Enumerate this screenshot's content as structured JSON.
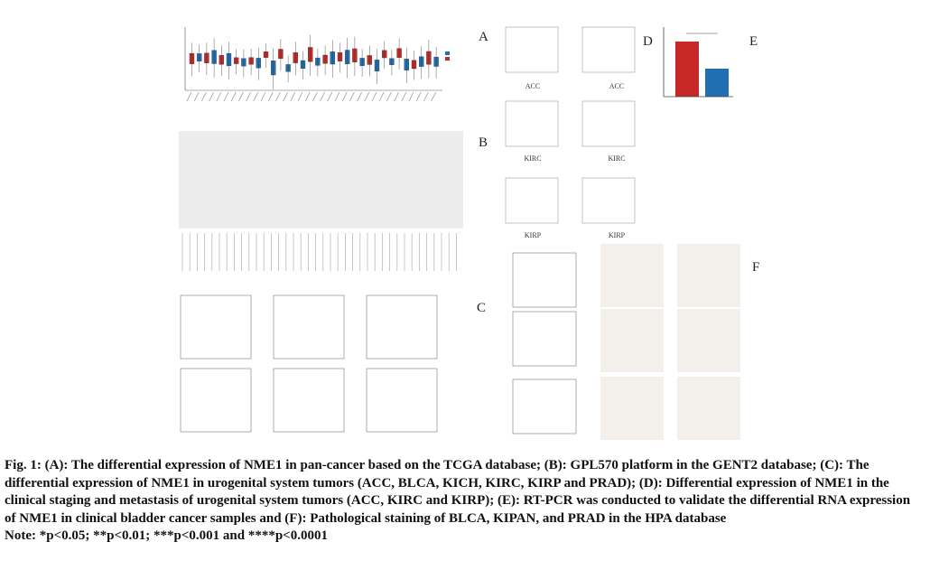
{
  "panels": {
    "labels": [
      "A",
      "B",
      "C",
      "D",
      "E",
      "F"
    ]
  },
  "panel_a_small": {
    "tumor_labels": [
      "ACC",
      "ACC",
      "KIRC",
      "KIRC",
      "KIRP",
      "KIRP"
    ]
  },
  "caption": {
    "text": "Fig. 1: (A): The differential expression of NME1 in pan-cancer based on the TCGA database; (B): GPL570 platform in the GENT2 database; (C): The differential expression of NME1 in urogenital system tumors (ACC, BLCA, KICH, KIRC, KIRP and PRAD); (D): Differential expression of NME1 in the clinical staging and metastasis of urogenital system tumors (ACC, KIRC and KIRP); (E): RT-PCR was conducted to validate the differential RNA expression of NME1 in clinical bladder cancer samples and (F): Pathological staining of BLCA, KIPAN, and PRAD in the HPA database",
    "note": "Note: *p<0.05; **p<0.01; ***p<0.001 and ****p<0.0001"
  }
}
